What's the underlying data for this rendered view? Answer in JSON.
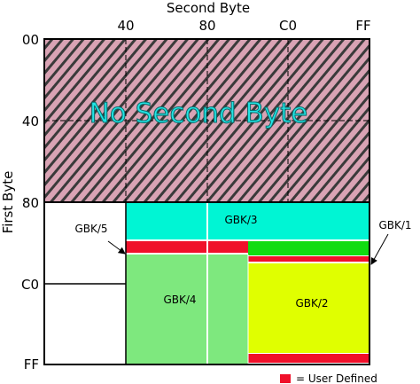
{
  "axes": {
    "top_title": "Second Byte",
    "left_title": "First Byte",
    "columns": [
      "40",
      "80",
      "C0",
      "FF"
    ],
    "rows": [
      "00",
      "40",
      "80",
      "C0",
      "FF"
    ]
  },
  "overlay_text": "No Second Byte",
  "regions": {
    "gbk1": "GBK/1",
    "gbk2": "GBK/2",
    "gbk3": "GBK/3",
    "gbk4": "GBK/4",
    "gbk5": "GBK/5"
  },
  "legend": {
    "label": "= User Defined"
  }
}
